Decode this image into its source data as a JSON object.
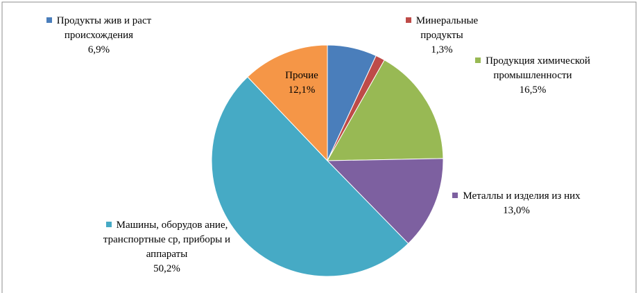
{
  "chart_data": {
    "type": "pie",
    "categories": [
      "Продукты жив и раст происхождения",
      "Минеральные продукты",
      "Продукция химической промышленности",
      "Металлы и изделия из них",
      "Машины, оборудов ание, транспортные ср, приборы и аппараты",
      "Прочие"
    ],
    "values": [
      6.9,
      1.3,
      16.5,
      13.0,
      50.2,
      12.1
    ],
    "value_labels": [
      "6,9%",
      "1,3%",
      "16,5%",
      "13,0%",
      "50,2%",
      "12,1%"
    ],
    "colors": [
      "#4a7ebb",
      "#be4b48",
      "#98b954",
      "#7d60a0",
      "#46aac5",
      "#f59647"
    ]
  }
}
